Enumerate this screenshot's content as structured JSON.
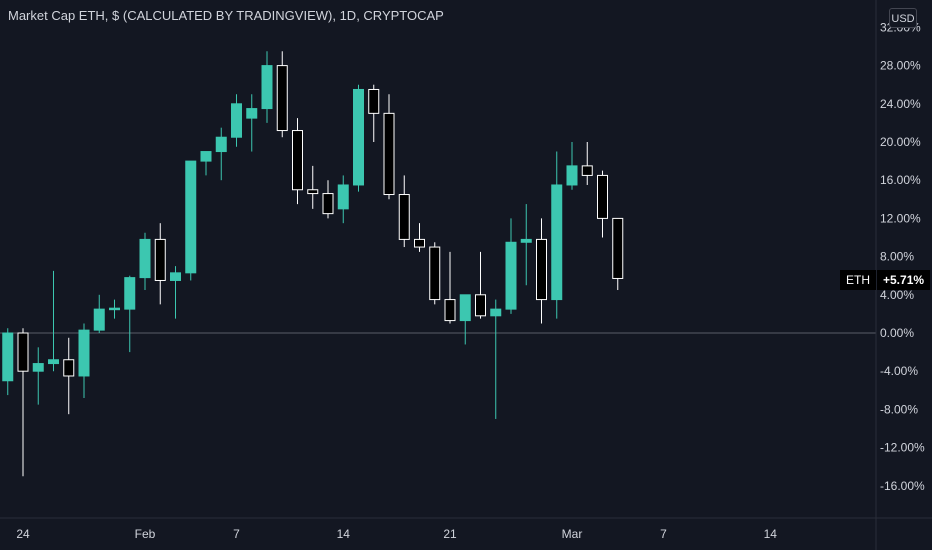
{
  "header": {
    "title": "Market Cap ETH, $ (CALCULATED BY TRADINGVIEW), 1D, CRYPTOCAP",
    "currency_button": "USD"
  },
  "last_value_badge": {
    "symbol": "ETH",
    "value": "+5.71%"
  },
  "colors": {
    "up": "#26a69a",
    "up_fill": "#3cc7b0",
    "down_fill": "#000000",
    "down_stroke": "#ffffff",
    "background": "#131722",
    "baseline": "#787b86"
  },
  "chart_data": {
    "type": "candlestick",
    "title": "Market Cap ETH, $ (CALCULATED BY TRADINGVIEW), 1D, CRYPTOCAP",
    "y_unit": "%",
    "ylim": [
      -18.5,
      33
    ],
    "y_ticks": [
      "32.00%",
      "28.00%",
      "24.00%",
      "20.00%",
      "16.00%",
      "12.00%",
      "8.00%",
      "4.00%",
      "0.00%",
      "-4.00%",
      "-8.00%",
      "-12.00%",
      "-16.00%"
    ],
    "y_tick_values": [
      32,
      28,
      24,
      20,
      16,
      12,
      8,
      4,
      0,
      -4,
      -8,
      -12,
      -16
    ],
    "x_ticks": [
      {
        "label": "24",
        "day": 0
      },
      {
        "label": "Feb",
        "day": 8
      },
      {
        "label": "7",
        "day": 14
      },
      {
        "label": "14",
        "day": 21
      },
      {
        "label": "21",
        "day": 28
      },
      {
        "label": "Mar",
        "day": 36
      },
      {
        "label": "7",
        "day": 42
      },
      {
        "label": "14",
        "day": 49
      }
    ],
    "baseline": 0,
    "candles": [
      {
        "day": -1,
        "o": -5.0,
        "h": 0.5,
        "l": -6.5,
        "c": 0.0
      },
      {
        "day": 0,
        "o": 0.0,
        "h": 0.5,
        "l": -15.0,
        "c": -4.0
      },
      {
        "day": 1,
        "o": -4.0,
        "h": -1.5,
        "l": -7.5,
        "c": -3.2
      },
      {
        "day": 2,
        "o": -3.2,
        "h": 6.5,
        "l": -4.0,
        "c": -2.8
      },
      {
        "day": 3,
        "o": -2.8,
        "h": -0.5,
        "l": -8.5,
        "c": -4.5
      },
      {
        "day": 4,
        "o": -4.5,
        "h": 1.0,
        "l": -6.8,
        "c": 0.3
      },
      {
        "day": 5,
        "o": 0.3,
        "h": 4.0,
        "l": 0.0,
        "c": 2.5
      },
      {
        "day": 6,
        "o": 2.5,
        "h": 3.5,
        "l": 1.5,
        "c": 2.6
      },
      {
        "day": 7,
        "o": 2.5,
        "h": 6.0,
        "l": -2.0,
        "c": 5.8
      },
      {
        "day": 8,
        "o": 5.8,
        "h": 10.5,
        "l": 4.5,
        "c": 9.8
      },
      {
        "day": 9,
        "o": 9.8,
        "h": 11.5,
        "l": 3.0,
        "c": 5.5
      },
      {
        "day": 10,
        "o": 5.5,
        "h": 7.0,
        "l": 1.5,
        "c": 6.3
      },
      {
        "day": 11,
        "o": 6.3,
        "h": 18.0,
        "l": 5.5,
        "c": 18.0
      },
      {
        "day": 12,
        "o": 18.0,
        "h": 19.0,
        "l": 16.5,
        "c": 19.0
      },
      {
        "day": 13,
        "o": 19.0,
        "h": 21.5,
        "l": 16.0,
        "c": 20.5
      },
      {
        "day": 14,
        "o": 20.5,
        "h": 25.0,
        "l": 19.5,
        "c": 24.0
      },
      {
        "day": 15,
        "o": 22.5,
        "h": 25.0,
        "l": 19.0,
        "c": 23.5
      },
      {
        "day": 16,
        "o": 23.5,
        "h": 29.5,
        "l": 22.0,
        "c": 28.0
      },
      {
        "day": 17,
        "o": 28.0,
        "h": 29.5,
        "l": 20.5,
        "c": 21.2
      },
      {
        "day": 18,
        "o": 21.2,
        "h": 22.5,
        "l": 13.5,
        "c": 15.0
      },
      {
        "day": 19,
        "o": 15.0,
        "h": 17.5,
        "l": 13.0,
        "c": 14.6
      },
      {
        "day": 20,
        "o": 14.6,
        "h": 16.0,
        "l": 12.0,
        "c": 12.5
      },
      {
        "day": 21,
        "o": 13.0,
        "h": 16.5,
        "l": 11.5,
        "c": 15.5
      },
      {
        "day": 22,
        "o": 15.5,
        "h": 26.0,
        "l": 14.8,
        "c": 25.5
      },
      {
        "day": 23,
        "o": 25.5,
        "h": 26.0,
        "l": 20.0,
        "c": 23.0
      },
      {
        "day": 24,
        "o": 23.0,
        "h": 25.0,
        "l": 14.0,
        "c": 14.5
      },
      {
        "day": 25,
        "o": 14.5,
        "h": 16.5,
        "l": 9.0,
        "c": 9.8
      },
      {
        "day": 26,
        "o": 9.8,
        "h": 11.5,
        "l": 8.5,
        "c": 9.0
      },
      {
        "day": 27,
        "o": 9.0,
        "h": 9.5,
        "l": 3.0,
        "c": 3.5
      },
      {
        "day": 28,
        "o": 3.5,
        "h": 8.5,
        "l": 1.0,
        "c": 1.3
      },
      {
        "day": 29,
        "o": 1.3,
        "h": 4.0,
        "l": -1.2,
        "c": 4.0
      },
      {
        "day": 30,
        "o": 4.0,
        "h": 8.5,
        "l": 1.5,
        "c": 1.8
      },
      {
        "day": 31,
        "o": 1.8,
        "h": 3.5,
        "l": -9.0,
        "c": 2.5
      },
      {
        "day": 32,
        "o": 2.5,
        "h": 12.0,
        "l": 2.0,
        "c": 9.5
      },
      {
        "day": 33,
        "o": 9.5,
        "h": 13.5,
        "l": 5.0,
        "c": 9.8
      },
      {
        "day": 34,
        "o": 9.8,
        "h": 12.0,
        "l": 1.0,
        "c": 3.5
      },
      {
        "day": 35,
        "o": 3.5,
        "h": 19.0,
        "l": 1.5,
        "c": 15.5
      },
      {
        "day": 36,
        "o": 15.5,
        "h": 20.0,
        "l": 15.0,
        "c": 17.5
      },
      {
        "day": 37,
        "o": 17.5,
        "h": 20.0,
        "l": 15.5,
        "c": 16.5
      },
      {
        "day": 38,
        "o": 16.5,
        "h": 17.0,
        "l": 10.0,
        "c": 12.0
      },
      {
        "day": 39,
        "o": 12.0,
        "h": 12.0,
        "l": 4.5,
        "c": 5.71
      }
    ]
  }
}
